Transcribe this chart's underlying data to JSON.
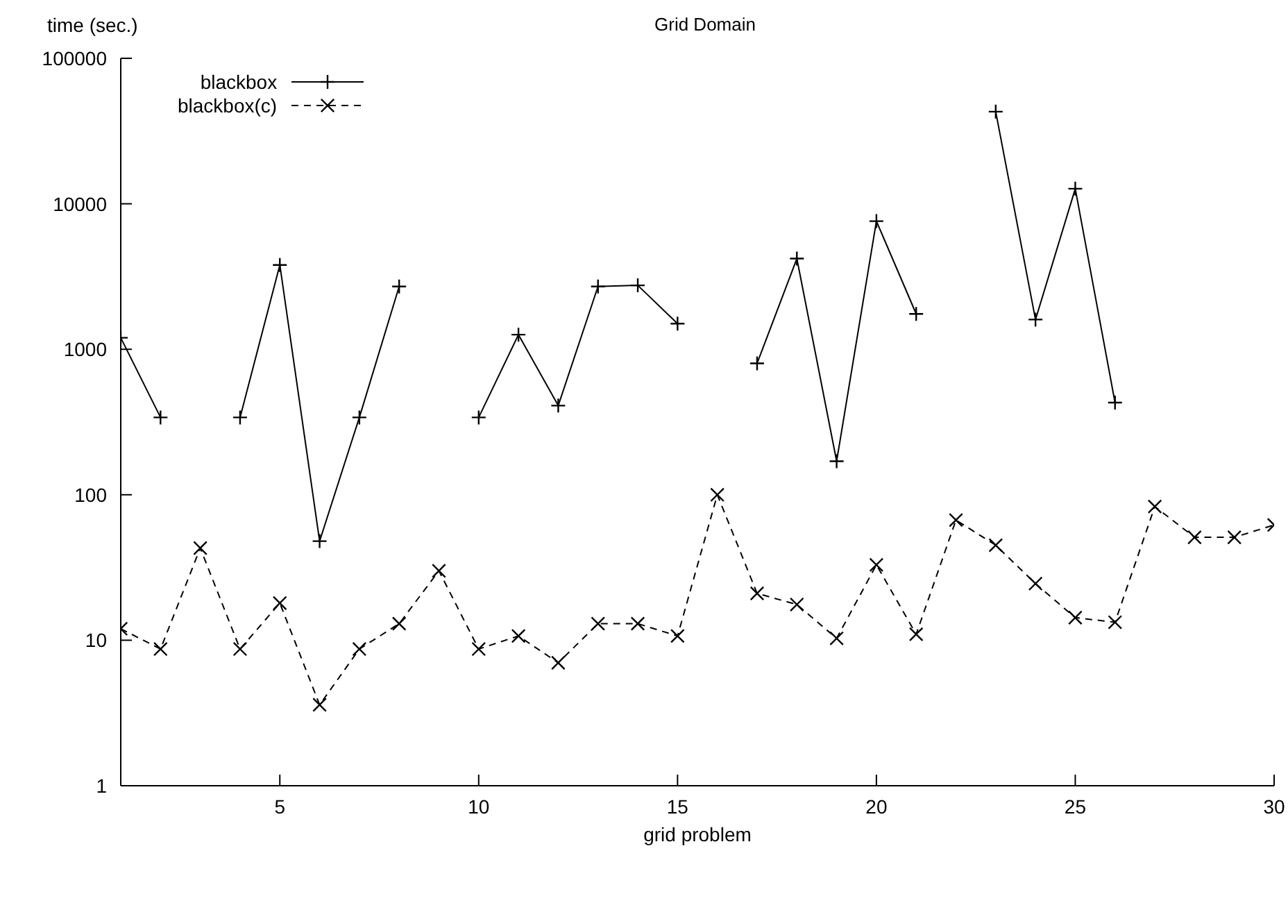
{
  "chart_data": {
    "type": "line",
    "title": "Grid Domain",
    "xlabel": "grid problem",
    "ylabel": "time (sec.)",
    "x": [
      1,
      2,
      3,
      4,
      5,
      6,
      7,
      8,
      9,
      10,
      11,
      12,
      13,
      14,
      15,
      16,
      17,
      18,
      19,
      20,
      21,
      22,
      23,
      24,
      25,
      26,
      27,
      28,
      29,
      30
    ],
    "series": [
      {
        "name": "blackbox",
        "color": "#000000",
        "line_style": "solid",
        "values": [
          1200,
          340,
          null,
          340,
          3800,
          48,
          340,
          2700,
          null,
          340,
          1260,
          410,
          2700,
          2750,
          1500,
          null,
          800,
          4200,
          170,
          7600,
          1750,
          null,
          43000,
          1600,
          12700,
          430,
          null,
          null,
          null,
          null
        ]
      },
      {
        "name": "blackbox(c)",
        "color": "#000000",
        "line_style": "dashed",
        "values": [
          12,
          8.7,
          43,
          8.7,
          18,
          3.6,
          8.7,
          13,
          30,
          8.7,
          10.7,
          7,
          13,
          13,
          10.7,
          100,
          21,
          17.6,
          10.3,
          33,
          11,
          67,
          45,
          24.5,
          14.3,
          13.3,
          83,
          51,
          51,
          62
        ]
      }
    ],
    "marker": "cross",
    "log": "y",
    "grid": false,
    "legend": "top left",
    "xlim": [
      1,
      30
    ],
    "xticks": [
      5,
      10,
      15,
      20,
      25,
      30
    ],
    "ylim": [
      1,
      100000
    ],
    "yticks": [
      1,
      10,
      100,
      1000,
      10000,
      100000
    ]
  }
}
